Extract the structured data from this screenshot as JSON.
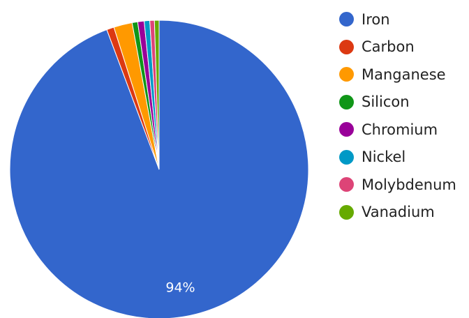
{
  "chart_data": {
    "type": "pie",
    "title": "",
    "legend_position": "right",
    "series": [
      {
        "name": "Iron",
        "value": 94.3,
        "color": "#3366cc"
      },
      {
        "name": "Carbon",
        "value": 0.8,
        "color": "#dc3912"
      },
      {
        "name": "Manganese",
        "value": 2.0,
        "color": "#ff9900"
      },
      {
        "name": "Silicon",
        "value": 0.6,
        "color": "#109618"
      },
      {
        "name": "Chromium",
        "value": 0.7,
        "color": "#990099"
      },
      {
        "name": "Nickel",
        "value": 0.6,
        "color": "#0099c6"
      },
      {
        "name": "Molybdenum",
        "value": 0.5,
        "color": "#dd4477"
      },
      {
        "name": "Vanadium",
        "value": 0.5,
        "color": "#66aa00"
      }
    ],
    "slice_labels": [
      "94%"
    ]
  }
}
